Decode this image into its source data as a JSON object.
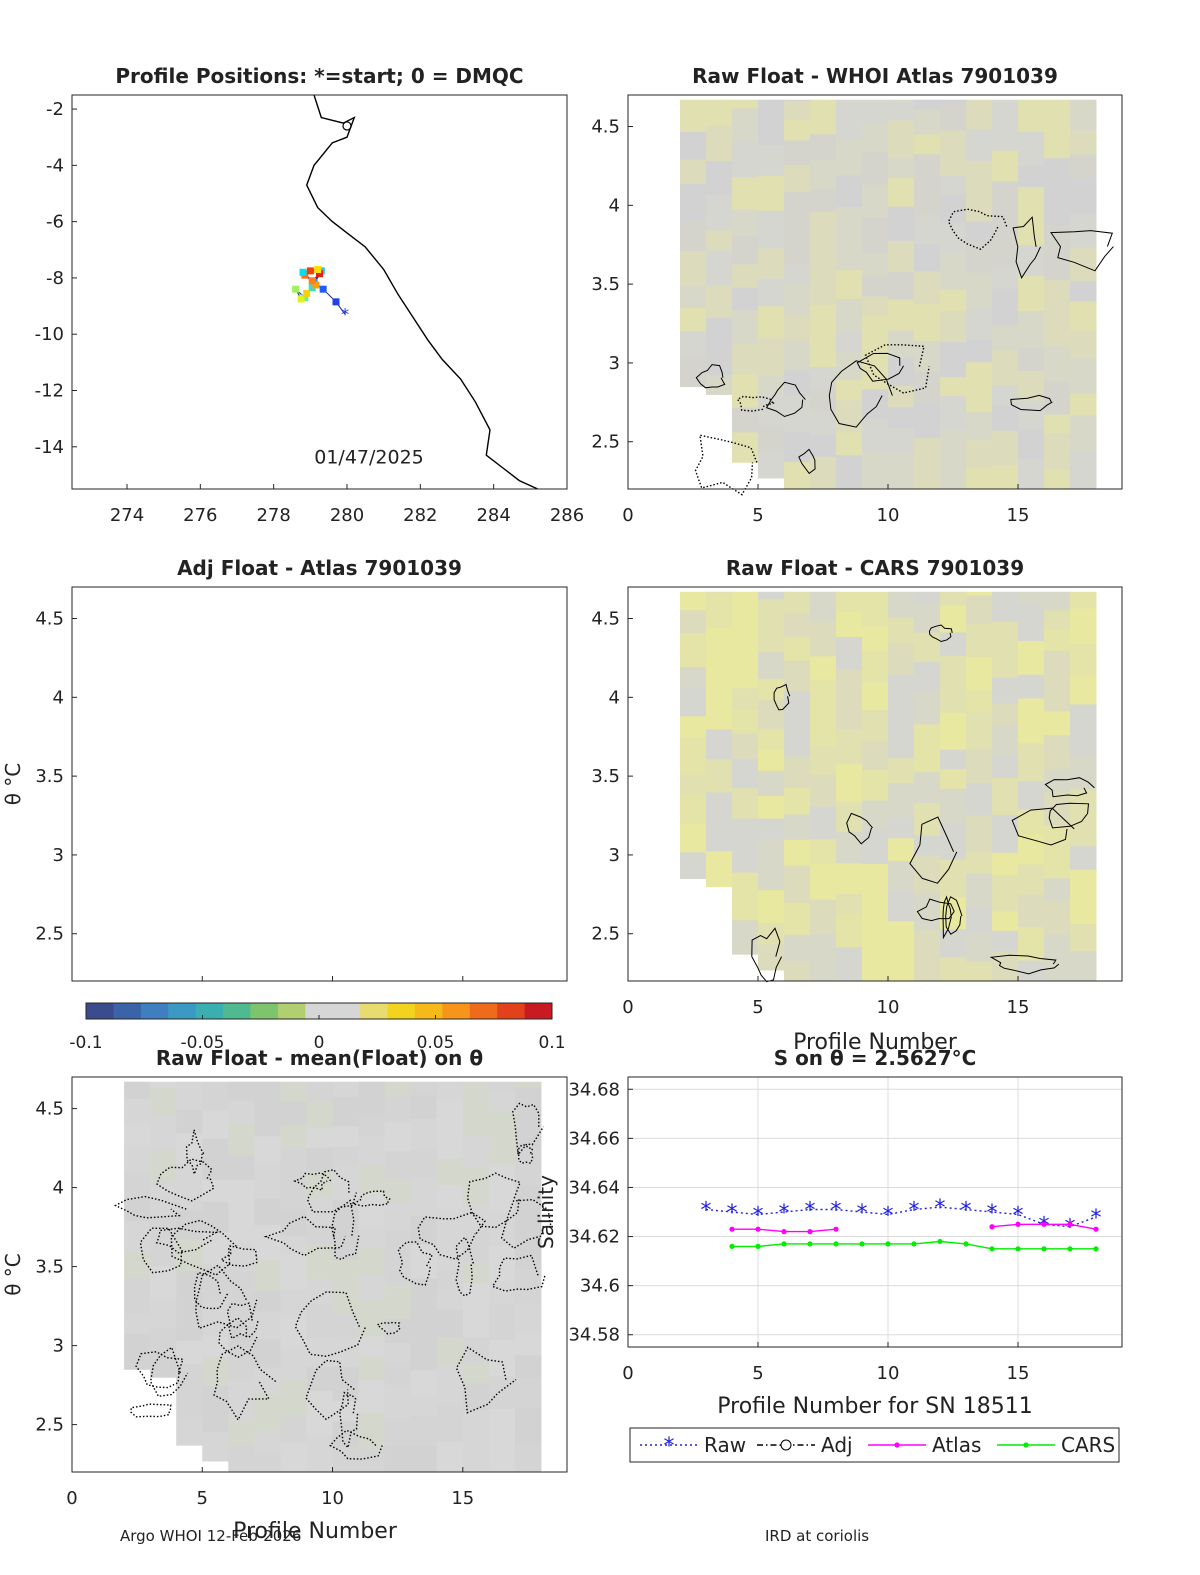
{
  "footer": {
    "left": "Argo WHOI 12-Feb-2026",
    "right": "IRD at coriolis"
  },
  "colorbar": {
    "ticks": [
      "-0.1",
      "-0.05",
      "0",
      "0.05",
      "0.1"
    ]
  },
  "colors": {
    "raw": "#2020e0",
    "adj": "#000000",
    "atlas": "#ff00ff",
    "cars": "#00ee00"
  },
  "chart_data": [
    {
      "type": "scatter",
      "title": "Profile Positions: *=start; 0 = DMQC",
      "annotation": "01/47/2025",
      "xlim": [
        272.5,
        286
      ],
      "ylim": [
        -15.5,
        -1.5
      ],
      "xticks": [
        "274",
        "276",
        "278",
        "280",
        "282",
        "284",
        "286"
      ],
      "yticks": [
        "-2",
        "-4",
        "-6",
        "-8",
        "-10",
        "-12",
        "-14"
      ],
      "track": [
        {
          "x": 279.95,
          "y": -9.3
        },
        {
          "x": 279.7,
          "y": -8.85
        },
        {
          "x": 279.35,
          "y": -8.4
        },
        {
          "x": 279.1,
          "y": -8.15
        },
        {
          "x": 279.3,
          "y": -7.75
        },
        {
          "x": 279.05,
          "y": -8.35
        },
        {
          "x": 278.85,
          "y": -8.7
        },
        {
          "x": 278.6,
          "y": -8.4
        },
        {
          "x": 278.75,
          "y": -8.75
        },
        {
          "x": 278.9,
          "y": -8.55
        },
        {
          "x": 279.15,
          "y": -8.25
        },
        {
          "x": 278.85,
          "y": -7.9
        },
        {
          "x": 279.0,
          "y": -7.75
        },
        {
          "x": 279.25,
          "y": -7.85
        },
        {
          "x": 279.05,
          "y": -8.1
        },
        {
          "x": 278.8,
          "y": -7.8
        },
        {
          "x": 279.2,
          "y": -7.7
        }
      ]
    },
    {
      "type": "heatmap",
      "title": "Raw Float - WHOI Atlas  7901039",
      "xlim": [
        0,
        19
      ],
      "ylim": [
        2.2,
        4.7
      ],
      "xticks": [
        "0",
        "5",
        "10",
        "15"
      ],
      "yticks": [
        "4.5",
        "4",
        "3.5",
        "3",
        "2.5"
      ]
    },
    {
      "type": "heatmap",
      "title": "Adj Float - Atlas  7901039",
      "ylabel": "θ °C",
      "xlim": [
        0,
        19
      ],
      "ylim": [
        2.2,
        4.7
      ],
      "yticks": [
        "4.5",
        "4",
        "3.5",
        "3",
        "2.5"
      ]
    },
    {
      "type": "heatmap",
      "title": "Raw Float - CARS  7901039",
      "xlabel": "Profile Number",
      "xlim": [
        0,
        19
      ],
      "ylim": [
        2.2,
        4.7
      ],
      "xticks": [
        "0",
        "5",
        "10",
        "15"
      ],
      "yticks": [
        "4.5",
        "4",
        "3.5",
        "3",
        "2.5"
      ]
    },
    {
      "type": "heatmap",
      "title": "Raw Float - mean(Float) on θ",
      "xlabel": "Profile Number",
      "ylabel": "θ °C",
      "xlim": [
        0,
        19
      ],
      "ylim": [
        2.2,
        4.7
      ],
      "xticks": [
        "0",
        "5",
        "10",
        "15"
      ],
      "yticks": [
        "4.5",
        "4",
        "3.5",
        "3",
        "2.5"
      ]
    },
    {
      "type": "line",
      "title": "S on θ = 2.5627°C",
      "xlabel": "Profile Number for SN 18511",
      "ylabel": "Salinity",
      "xlim": [
        0,
        19
      ],
      "ylim": [
        34.575,
        34.685
      ],
      "xticks": [
        "0",
        "5",
        "10",
        "15"
      ],
      "yticks": [
        "34.68",
        "34.66",
        "34.64",
        "34.62",
        "34.6",
        "34.58"
      ],
      "grid": true,
      "legend": [
        "Raw",
        "Adj",
        "Atlas",
        "CARS"
      ],
      "series": [
        {
          "name": "Raw",
          "x": [
            3,
            4,
            5,
            6,
            7,
            8,
            9,
            10,
            11,
            12,
            13,
            14,
            15,
            16,
            17,
            18
          ],
          "values": [
            34.631,
            34.63,
            34.629,
            34.63,
            34.631,
            34.631,
            34.63,
            34.629,
            34.631,
            34.632,
            34.631,
            34.63,
            34.629,
            34.625,
            34.624,
            34.628
          ]
        },
        {
          "name": "Atlas",
          "x": [
            4,
            5,
            6,
            7,
            8,
            14,
            15,
            16,
            17,
            18
          ],
          "values": [
            34.623,
            34.623,
            34.622,
            34.622,
            34.623,
            34.624,
            34.625,
            34.625,
            34.625,
            34.623
          ]
        },
        {
          "name": "CARS",
          "x": [
            4,
            5,
            6,
            7,
            8,
            9,
            10,
            11,
            12,
            13,
            14,
            15,
            16,
            17,
            18
          ],
          "values": [
            34.616,
            34.616,
            34.617,
            34.617,
            34.617,
            34.617,
            34.617,
            34.617,
            34.618,
            34.617,
            34.615,
            34.615,
            34.615,
            34.615,
            34.615
          ]
        }
      ]
    }
  ]
}
